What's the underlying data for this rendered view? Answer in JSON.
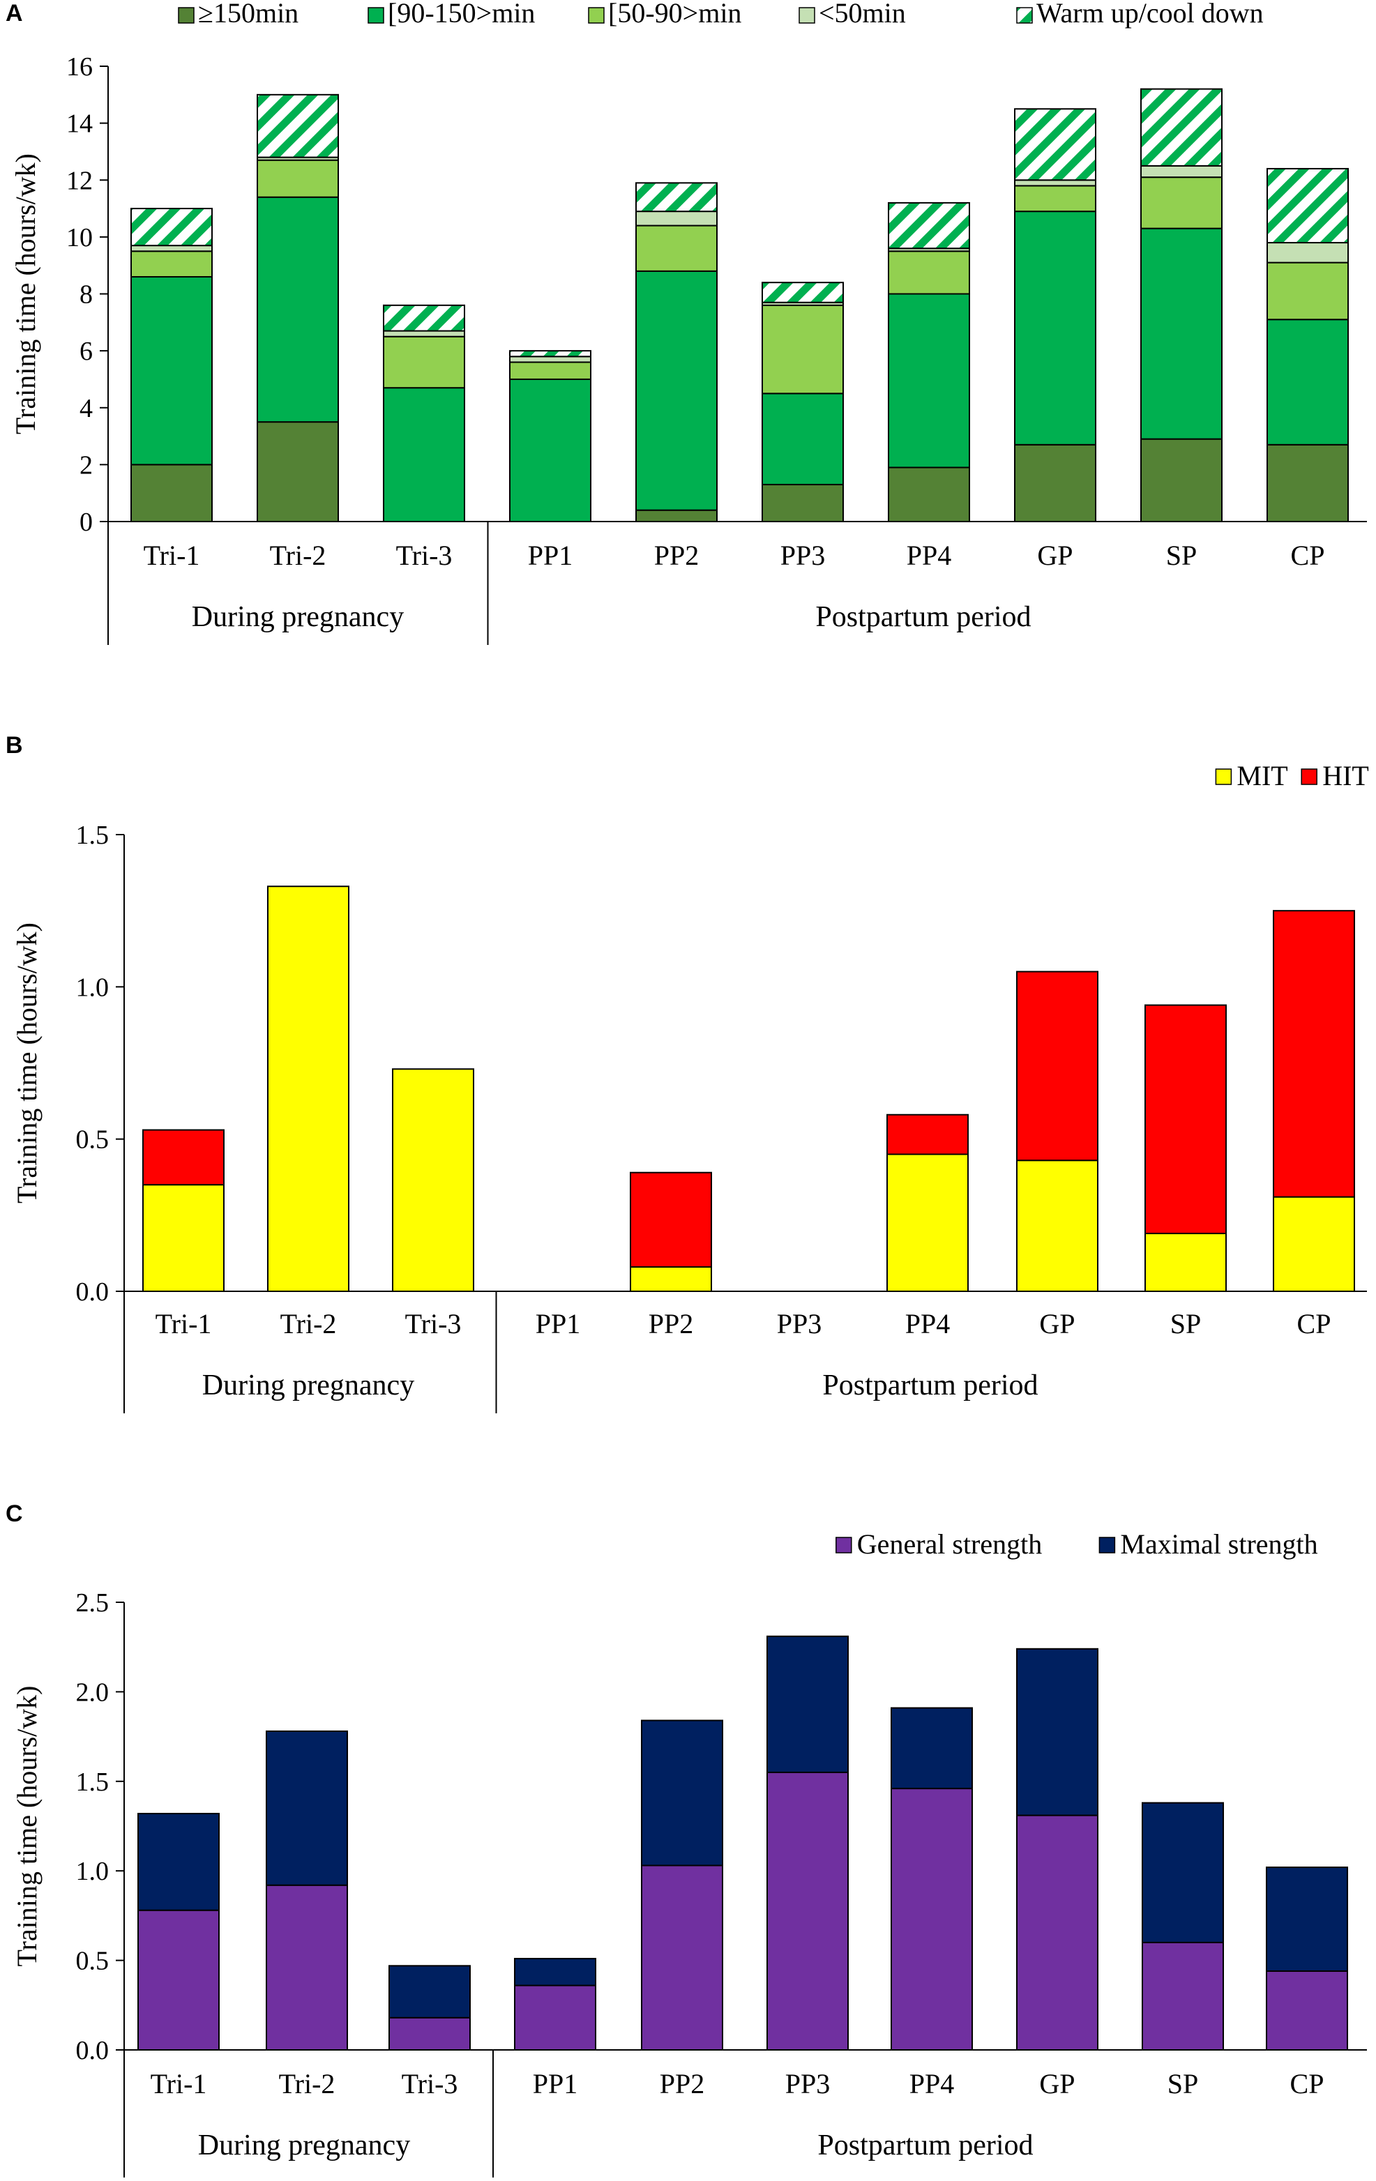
{
  "chart_data": [
    {
      "type": "bar",
      "stacked": true,
      "panel_label": "A",
      "ylabel": "Training time (hours/wk)",
      "ylim": [
        0,
        16
      ],
      "yticks": [
        0,
        2,
        4,
        6,
        8,
        10,
        12,
        14,
        16
      ],
      "ytick_labels": [
        "0",
        "2",
        "4",
        "6",
        "8",
        "10",
        "12",
        "14",
        "16"
      ],
      "categories": [
        "Tri-1",
        "Tri-2",
        "Tri-3",
        "PP1",
        "PP2",
        "PP3",
        "PP4",
        "GP",
        "SP",
        "CP"
      ],
      "groups": [
        {
          "label": "During pregnancy",
          "count": 3
        },
        {
          "label": "Postpartum period",
          "count": 7
        }
      ],
      "legend_position": "top",
      "series": [
        {
          "name": "≥150min",
          "color": "#548235",
          "values": [
            2.0,
            3.5,
            0,
            0,
            0.4,
            1.3,
            1.9,
            2.7,
            2.9,
            2.7
          ]
        },
        {
          "name": "[90-150>min",
          "color": "#00b050",
          "values": [
            6.6,
            7.9,
            4.7,
            5.0,
            8.4,
            3.2,
            6.1,
            8.2,
            7.4,
            4.4
          ]
        },
        {
          "name": "[50-90>min",
          "color": "#92d050",
          "values": [
            0.9,
            1.3,
            1.8,
            0.6,
            1.6,
            3.1,
            1.5,
            0.9,
            1.8,
            2.0
          ]
        },
        {
          "name": "<50min",
          "color": "#c5e0b4",
          "values": [
            0.2,
            0.1,
            0.2,
            0.2,
            0.5,
            0.1,
            0.1,
            0.2,
            0.4,
            0.7
          ]
        },
        {
          "name": "Warm up/cool down",
          "color": "#00b050",
          "pattern": "hatch",
          "values": [
            1.3,
            2.2,
            0.9,
            0.2,
            1.0,
            0.7,
            1.6,
            2.5,
            2.7,
            2.6
          ]
        }
      ]
    },
    {
      "type": "bar",
      "stacked": true,
      "panel_label": "B",
      "ylabel": "Training time (hours/wk)",
      "ylim": [
        0,
        1.5
      ],
      "yticks": [
        0,
        0.5,
        1.0,
        1.5
      ],
      "ytick_labels": [
        "0.0",
        "0.5",
        "1.0",
        "1.5"
      ],
      "categories": [
        "Tri-1",
        "Tri-2",
        "Tri-3",
        "PP1",
        "PP2",
        "PP3",
        "PP4",
        "GP",
        "SP",
        "CP"
      ],
      "groups": [
        {
          "label": "During pregnancy",
          "count": 3
        },
        {
          "label": "Postpartum period",
          "count": 7
        }
      ],
      "legend_position": "top-right",
      "series": [
        {
          "name": "MIT",
          "color": "#ffff00",
          "values": [
            0.35,
            1.33,
            0.73,
            0,
            0.08,
            0,
            0.45,
            0.43,
            0.19,
            0.31
          ]
        },
        {
          "name": "HIT",
          "color": "#ff0000",
          "values": [
            0.18,
            0,
            0,
            0,
            0.31,
            0,
            0.13,
            0.62,
            0.75,
            0.94
          ]
        }
      ]
    },
    {
      "type": "bar",
      "stacked": true,
      "panel_label": "C",
      "ylabel": "Training time (hours/wk)",
      "ylim": [
        0,
        2.5
      ],
      "yticks": [
        0,
        0.5,
        1.0,
        1.5,
        2.0,
        2.5
      ],
      "ytick_labels": [
        "0.0",
        "0.5",
        "1.0",
        "1.5",
        "2.0",
        "2.5"
      ],
      "categories": [
        "Tri-1",
        "Tri-2",
        "Tri-3",
        "PP1",
        "PP2",
        "PP3",
        "PP4",
        "GP",
        "SP",
        "CP"
      ],
      "groups": [
        {
          "label": "During pregnancy",
          "count": 3
        },
        {
          "label": "Postpartum period",
          "count": 7
        }
      ],
      "legend_position": "top-right",
      "series": [
        {
          "name": "General strength",
          "color": "#7030a0",
          "values": [
            0.78,
            0.92,
            0.18,
            0.36,
            1.03,
            1.55,
            1.46,
            1.31,
            0.6,
            0.44
          ]
        },
        {
          "name": "Maximal strength",
          "color": "#002060",
          "values": [
            0.54,
            0.86,
            0.29,
            0.15,
            0.81,
            0.76,
            0.45,
            0.93,
            0.78,
            0.58
          ]
        }
      ]
    }
  ]
}
